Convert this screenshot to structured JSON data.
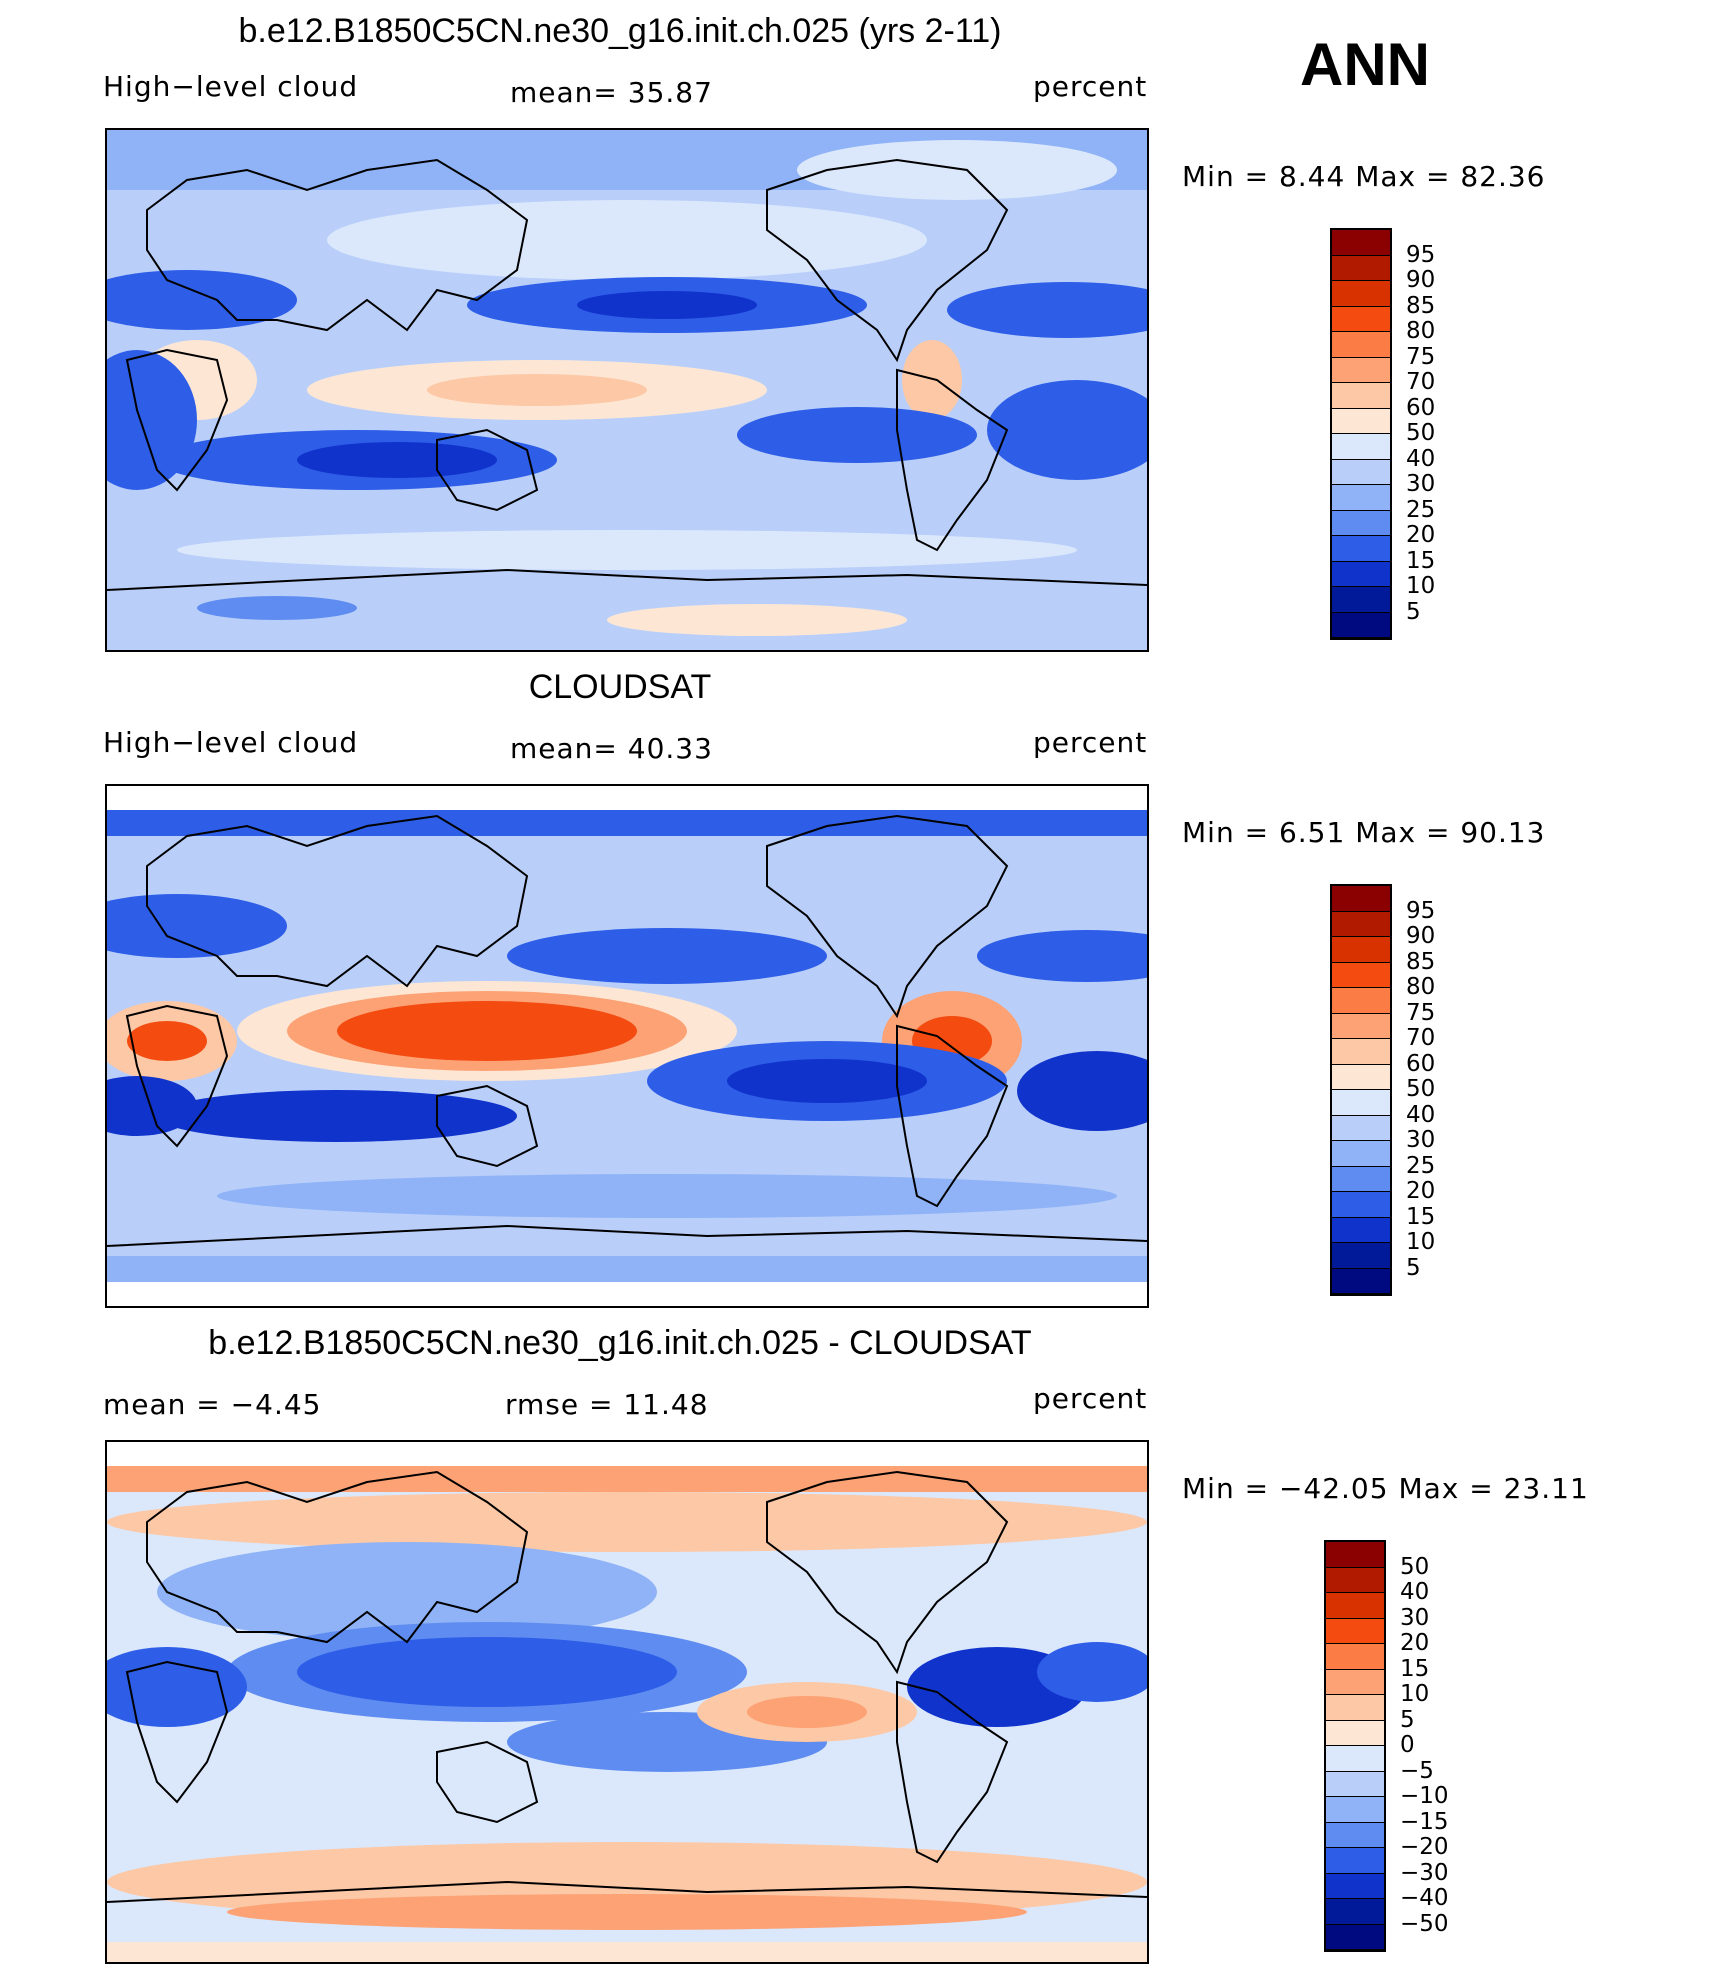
{
  "season": "ANN",
  "panels": [
    {
      "title": "b.e12.B1850C5CN.ne30_g16.init.ch.025 (yrs 2-11)",
      "left_label": "High−level cloud",
      "mid_label": "mean=   35.87",
      "right_label": "percent",
      "minmax": "Min =    8.44  Max =   82.36"
    },
    {
      "title": "CLOUDSAT",
      "left_label": "High−level cloud",
      "mid_label": "mean=   40.33",
      "right_label": "percent",
      "minmax": "Min =    6.51  Max =   90.13"
    },
    {
      "title": "b.e12.B1850C5CN.ne30_g16.init.ch.025 - CLOUDSAT",
      "left_label": "mean =   −4.45",
      "mid_label": "rmse =   11.48",
      "right_label": "percent",
      "minmax": "Min = −42.05  Max =   23.11"
    }
  ],
  "colorbar_abs": {
    "levels": [
      "95",
      "90",
      "85",
      "80",
      "75",
      "70",
      "60",
      "50",
      "40",
      "30",
      "25",
      "20",
      "15",
      "10",
      "5"
    ],
    "colors": [
      "#8b0000",
      "#b21a00",
      "#d83200",
      "#f44b10",
      "#fb7c45",
      "#fca275",
      "#fcc8a6",
      "#fde7d4",
      "#dbe8fc",
      "#b9cffa",
      "#8fb3f6",
      "#5f8cf0",
      "#2e5ee8",
      "#1033cc",
      "#001a99",
      "#000a80"
    ]
  },
  "colorbar_diff": {
    "levels": [
      "50",
      "40",
      "30",
      "20",
      "15",
      "10",
      "5",
      "0",
      "−5",
      "−10",
      "−15",
      "−20",
      "−30",
      "−40",
      "−50"
    ],
    "colors": [
      "#8b0000",
      "#b21a00",
      "#d83200",
      "#f44b10",
      "#fb7c45",
      "#fca275",
      "#fcc8a6",
      "#fde7d4",
      "#dbe8fc",
      "#b9cffa",
      "#8fb3f6",
      "#5f8cf0",
      "#2e5ee8",
      "#1033cc",
      "#001a99",
      "#000a80"
    ]
  },
  "chart_data": [
    {
      "type": "heatmap",
      "title": "b.e12.B1850C5CN.ne30_g16.init.ch.025 (yrs 2-11)",
      "variable": "High-level cloud",
      "units": "percent",
      "mean": 35.87,
      "min": 8.44,
      "max": 82.36,
      "contour_levels": [
        5,
        10,
        15,
        20,
        25,
        30,
        40,
        50,
        60,
        70,
        75,
        80,
        85,
        90,
        95
      ]
    },
    {
      "type": "heatmap",
      "title": "CLOUDSAT",
      "variable": "High-level cloud",
      "units": "percent",
      "mean": 40.33,
      "min": 6.51,
      "max": 90.13,
      "contour_levels": [
        5,
        10,
        15,
        20,
        25,
        30,
        40,
        50,
        60,
        70,
        75,
        80,
        85,
        90,
        95
      ]
    },
    {
      "type": "heatmap",
      "title": "b.e12.B1850C5CN.ne30_g16.init.ch.025 - CLOUDSAT",
      "units": "percent",
      "mean": -4.45,
      "rmse": 11.48,
      "min": -42.05,
      "max": 23.11,
      "contour_levels": [
        -50,
        -40,
        -30,
        -20,
        -15,
        -10,
        -5,
        0,
        5,
        10,
        15,
        20,
        30,
        40,
        50
      ]
    }
  ]
}
